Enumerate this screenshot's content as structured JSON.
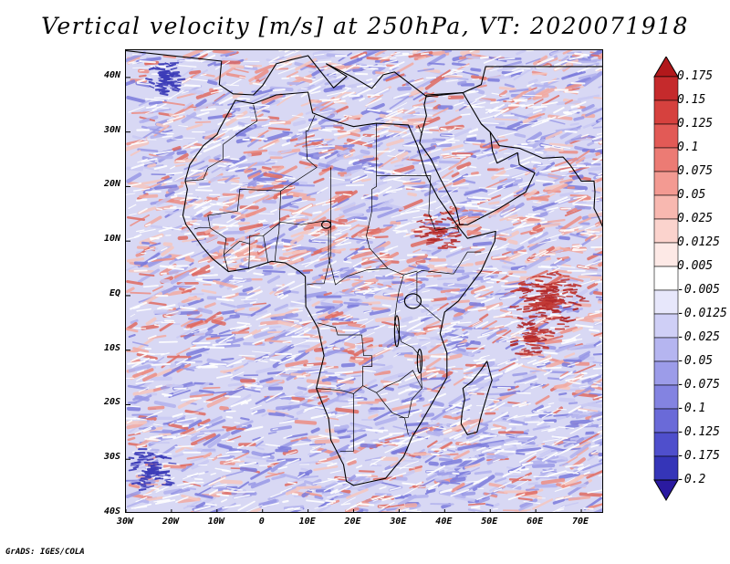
{
  "title": "Vertical velocity [m/s] at 250hPa, VT: 2020071918",
  "footer": "GrADS: IGES/COLA",
  "map": {
    "lon_range": [
      -30,
      75
    ],
    "lat_range": [
      -40,
      45
    ],
    "lat_ticks": [
      {
        "value": 40,
        "label": "40N"
      },
      {
        "value": 30,
        "label": "30N"
      },
      {
        "value": 20,
        "label": "20N"
      },
      {
        "value": 10,
        "label": "10N"
      },
      {
        "value": 0,
        "label": "EQ"
      },
      {
        "value": -10,
        "label": "10S"
      },
      {
        "value": -20,
        "label": "20S"
      },
      {
        "value": -30,
        "label": "30S"
      },
      {
        "value": -40,
        "label": "40S"
      }
    ],
    "lon_ticks": [
      {
        "value": -30,
        "label": "30W"
      },
      {
        "value": -20,
        "label": "20W"
      },
      {
        "value": -10,
        "label": "10W"
      },
      {
        "value": 0,
        "label": "0"
      },
      {
        "value": 10,
        "label": "10E"
      },
      {
        "value": 20,
        "label": "20E"
      },
      {
        "value": 30,
        "label": "30E"
      },
      {
        "value": 40,
        "label": "40E"
      },
      {
        "value": 50,
        "label": "50E"
      },
      {
        "value": 60,
        "label": "60E"
      },
      {
        "value": 70,
        "label": "70E"
      }
    ]
  },
  "colorbar": {
    "levels": [
      {
        "label": "0.175",
        "color": "#b2181b"
      },
      {
        "label": "0.15",
        "color": "#c52a2c"
      },
      {
        "label": "0.125",
        "color": "#d6413e"
      },
      {
        "label": "0.1",
        "color": "#e25a56"
      },
      {
        "label": "0.075",
        "color": "#ec7b74"
      },
      {
        "label": "0.05",
        "color": "#f39a92"
      },
      {
        "label": "0.025",
        "color": "#f8b8b0"
      },
      {
        "label": "0.0125",
        "color": "#fbd3cd"
      },
      {
        "label": "0.005",
        "color": "#fde9e6"
      },
      {
        "label": "-0.005",
        "color": "#ffffff"
      },
      {
        "label": "-0.0125",
        "color": "#e7e7fb"
      },
      {
        "label": "-0.025",
        "color": "#cfcff6"
      },
      {
        "label": "-0.05",
        "color": "#b5b5f0"
      },
      {
        "label": "-0.075",
        "color": "#9c9ce9"
      },
      {
        "label": "-0.1",
        "color": "#8383e1"
      },
      {
        "label": "-0.125",
        "color": "#6a6ad8"
      },
      {
        "label": "-0.175",
        "color": "#4f4fcc"
      },
      {
        "label": "-0.2",
        "color": "#3535b8"
      }
    ],
    "bottom_color": "#2a1aa0"
  }
}
